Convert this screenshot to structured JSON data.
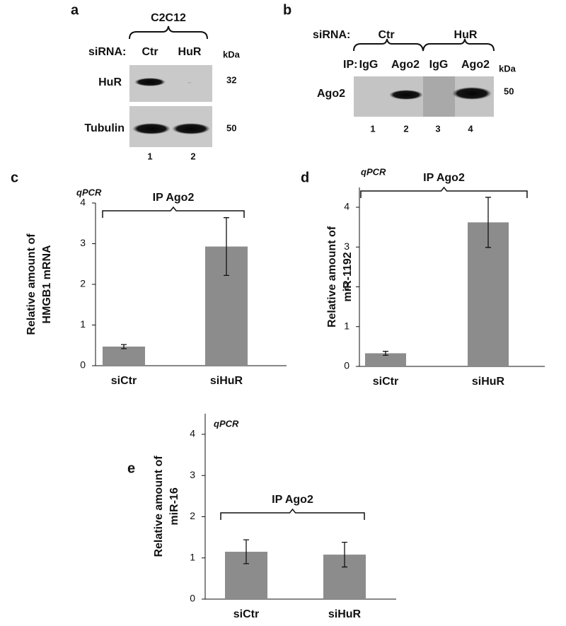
{
  "blots": {
    "a": {
      "panel_label": "a",
      "cell_line": "C2C12",
      "sirna_label": "siRNA:",
      "sirna": [
        "Ctr",
        "HuR"
      ],
      "kda_label": "kDa",
      "rows": [
        {
          "label": "HuR",
          "kda": 32
        },
        {
          "label": "Tubulin",
          "kda": 50
        }
      ],
      "lanes": [
        1,
        2
      ]
    },
    "b": {
      "panel_label": "b",
      "sirna_label": "siRNA:",
      "sirna": [
        "Ctr",
        "HuR"
      ],
      "ip_label": "IP:",
      "ip": [
        "IgG",
        "Ago2",
        "IgG",
        "Ago2"
      ],
      "kda_label": "kDa",
      "rows": [
        {
          "label": "Ago2",
          "kda": 50
        }
      ],
      "lanes": [
        1,
        2,
        3,
        4
      ]
    }
  },
  "chart_data": [
    {
      "type": "bar",
      "panel_label": "c",
      "annotation": "qPCR",
      "bracket_label": "IP Ago2",
      "ylabel": [
        "Relative amount of",
        "HMGB1 mRNA"
      ],
      "categories": [
        "siCtr",
        "siHuR"
      ],
      "values": [
        0.47,
        2.93
      ],
      "errors": [
        0.05,
        0.71
      ],
      "color": "#8c8c8c",
      "ylim": [
        0,
        4
      ],
      "yticks": [
        0,
        1,
        2,
        3,
        4
      ]
    },
    {
      "type": "bar",
      "panel_label": "d",
      "annotation": "qPCR",
      "bracket_label": "IP Ago2",
      "ylabel": [
        "Relative amount of",
        "miR-1192"
      ],
      "categories": [
        "siCtr",
        "siHuR"
      ],
      "values": [
        0.33,
        3.62
      ],
      "errors": [
        0.05,
        0.63
      ],
      "color": "#8c8c8c",
      "ylim": [
        0,
        4.5
      ],
      "yticks": [
        0,
        1,
        2,
        3,
        4
      ]
    },
    {
      "type": "bar",
      "panel_label": "e",
      "annotation": "qPCR",
      "bracket_label": "IP Ago2",
      "ylabel": [
        "Relative amount of",
        "miR-16"
      ],
      "categories": [
        "siCtr",
        "siHuR"
      ],
      "values": [
        1.15,
        1.08
      ],
      "errors": [
        0.29,
        0.3
      ],
      "color": "#8c8c8c",
      "ylim": [
        0,
        4.5
      ],
      "yticks": [
        0,
        1,
        2,
        3,
        4
      ]
    }
  ]
}
